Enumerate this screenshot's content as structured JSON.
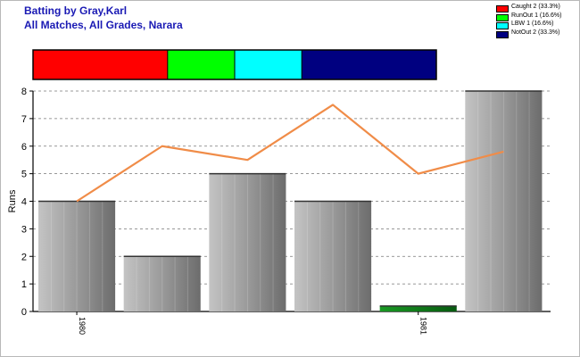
{
  "header": {
    "title": "Batting by Gray,Karl",
    "subtitle": "All Matches, All Grades, Narara"
  },
  "legend": [
    {
      "label": "Caught 2 (33.3%)",
      "color": "#ff0000",
      "fraction": 0.333
    },
    {
      "label": "RunOut 1 (16.6%)",
      "color": "#00ff00",
      "fraction": 0.166
    },
    {
      "label": "LBW 1 (16.6%)",
      "color": "#00ffff",
      "fraction": 0.166
    },
    {
      "label": "NotOut 2 (33.3%)",
      "color": "#000080",
      "fraction": 0.333
    }
  ],
  "chart_data": {
    "type": "bar",
    "title": "Batting by Gray,Karl",
    "subtitle": "All Matches, All Grades, Narara",
    "ylabel": "Runs",
    "xlabel": "",
    "ylim": [
      0,
      8
    ],
    "yticks": [
      0,
      1,
      2,
      3,
      4,
      5,
      6,
      7,
      8
    ],
    "grid": true,
    "x_tick_labels": [
      {
        "label": "1980",
        "index": 0
      },
      {
        "label": "1981",
        "index": 4
      }
    ],
    "series": [
      {
        "kind": "bar",
        "values": [
          4,
          2,
          5,
          4,
          0.2,
          8
        ],
        "colors": [
          "#a0a0a0",
          "#a0a0a0",
          "#a0a0a0",
          "#a0a0a0",
          "#0a7a14",
          "#a0a0a0"
        ]
      },
      {
        "kind": "line",
        "color": "#f08c48",
        "values": [
          4,
          6,
          5.5,
          7.5,
          5,
          5.8
        ]
      }
    ],
    "dismissal_bar": {
      "type": "stacked-bar",
      "segments": [
        {
          "label": "Caught",
          "count": 2,
          "percent": 33.3,
          "color": "#ff0000"
        },
        {
          "label": "RunOut",
          "count": 1,
          "percent": 16.6,
          "color": "#00ff00"
        },
        {
          "label": "LBW",
          "count": 1,
          "percent": 16.6,
          "color": "#00ffff"
        },
        {
          "label": "NotOut",
          "count": 2,
          "percent": 33.3,
          "color": "#000080"
        }
      ]
    }
  }
}
